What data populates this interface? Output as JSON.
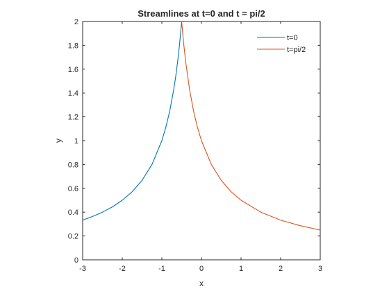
{
  "chart_data": {
    "type": "line",
    "title": "Streamlines at t=0 and t = pi/2",
    "xlabel": "x",
    "ylabel": "y",
    "xlim": [
      -3,
      3
    ],
    "ylim": [
      0,
      2
    ],
    "xticks": [
      -3,
      -2,
      -1,
      0,
      1,
      2,
      3
    ],
    "yticks": [
      0,
      0.2,
      0.4,
      0.6,
      0.8,
      1,
      1.2,
      1.4,
      1.6,
      1.8,
      2
    ],
    "grid": false,
    "legend_position": "top-right",
    "series": [
      {
        "name": "t=0",
        "color": "#0072BD",
        "x": [
          -3,
          -2.75,
          -2.5,
          -2.25,
          -2,
          -1.75,
          -1.5,
          -1.25,
          -1,
          -0.9,
          -0.8,
          -0.7,
          -0.65,
          -0.6,
          -0.55,
          -0.5
        ],
        "y": [
          0.333,
          0.364,
          0.4,
          0.444,
          0.5,
          0.571,
          0.667,
          0.8,
          1.0,
          1.111,
          1.25,
          1.429,
          1.538,
          1.667,
          1.818,
          2.0
        ]
      },
      {
        "name": "t=pi/2",
        "color": "#D95319",
        "x": [
          -0.5,
          -0.45,
          -0.4,
          -0.3,
          -0.2,
          -0.1,
          0,
          0.25,
          0.5,
          0.75,
          1,
          1.5,
          2,
          2.5,
          3
        ],
        "y": [
          2.0,
          1.818,
          1.667,
          1.429,
          1.25,
          1.111,
          1.0,
          0.8,
          0.667,
          0.571,
          0.5,
          0.4,
          0.333,
          0.286,
          0.25
        ]
      }
    ]
  }
}
